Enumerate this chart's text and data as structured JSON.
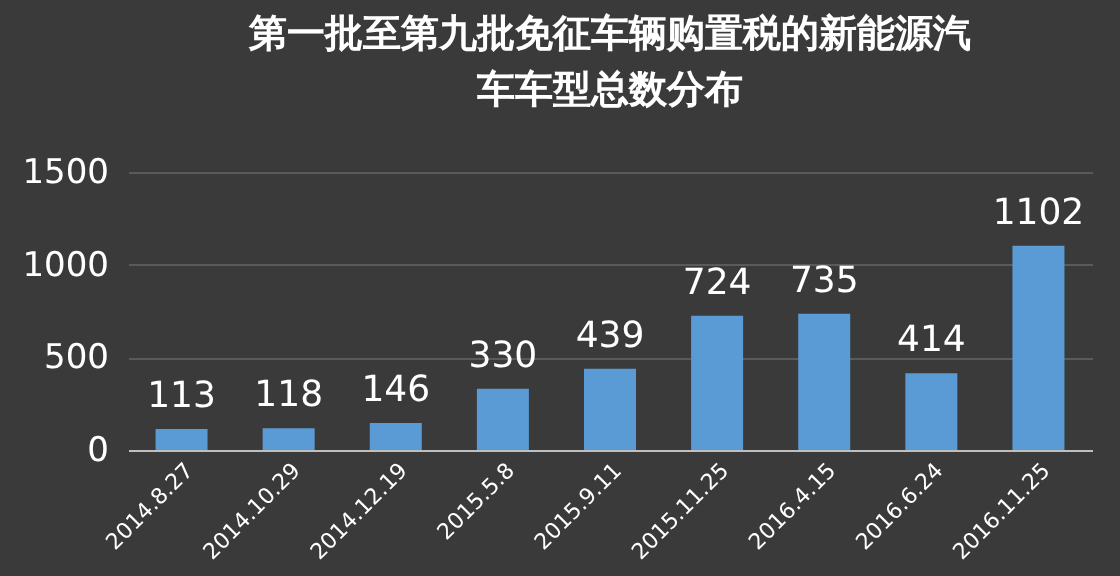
{
  "chart_data": {
    "type": "bar",
    "title": "第一批至第九批免征车辆购置税的新能源汽车车型总数分布",
    "categories": [
      "2014.8.27",
      "2014.10.29",
      "2014.12.19",
      "2015.5.8",
      "2015.9.11",
      "2015.11.25",
      "2016.4.15",
      "2016.6.24",
      "2016.11.25"
    ],
    "values": [
      113,
      118,
      146,
      330,
      439,
      724,
      735,
      414,
      1102
    ],
    "color": "#5b9bd5",
    "ylim": [
      0,
      1500
    ],
    "yticks": [
      0,
      500,
      1000,
      1500
    ],
    "grid": "y",
    "data_labels": true
  }
}
